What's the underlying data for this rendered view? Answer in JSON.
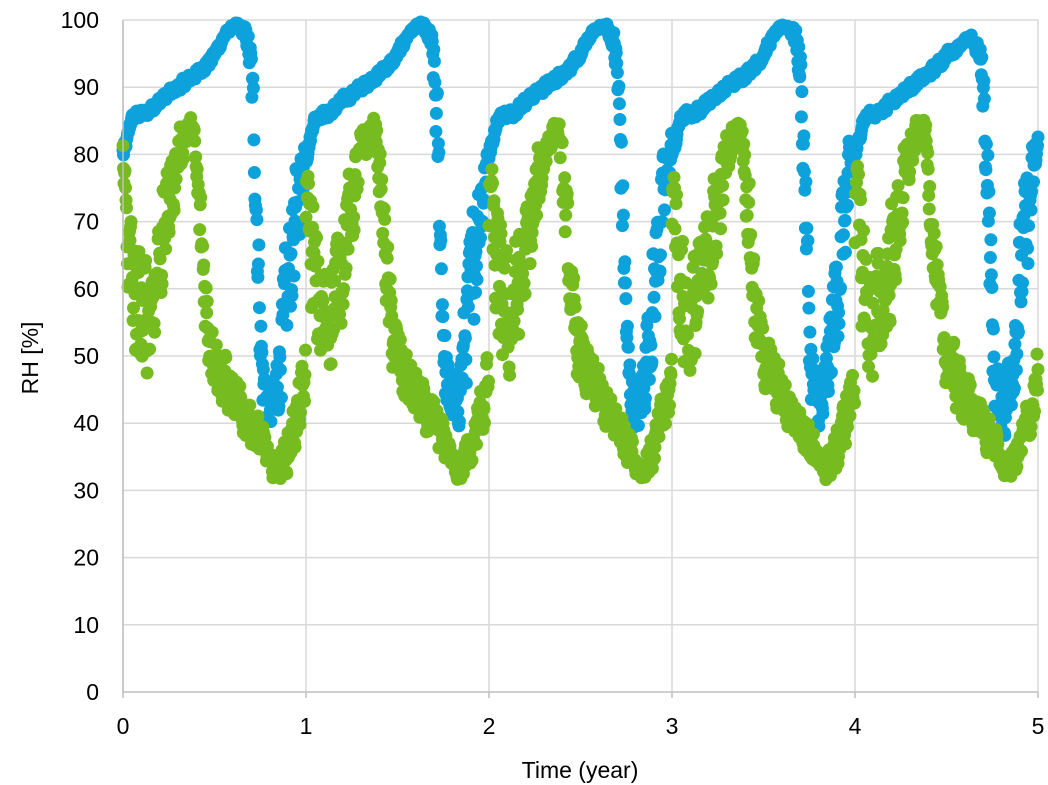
{
  "chart_data": {
    "type": "scatter",
    "xlabel": "Time (year)",
    "ylabel": "RH [%]",
    "xlim": [
      0,
      5
    ],
    "ylim": [
      0,
      100
    ],
    "xticks": [
      0,
      1,
      2,
      3,
      4,
      5
    ],
    "yticks": [
      0,
      10,
      20,
      30,
      40,
      50,
      60,
      70,
      80,
      90,
      100
    ],
    "grid": "on",
    "legend": "none",
    "series": [
      {
        "color": "#0ea2dc",
        "style": "thick markers with daily noise",
        "x": [
          0.0,
          0.02,
          0.04,
          0.08,
          0.12,
          0.16,
          0.2,
          0.25,
          0.3,
          0.35,
          0.4,
          0.44,
          0.48,
          0.52,
          0.56,
          0.6,
          0.64,
          0.68,
          0.7,
          0.72,
          0.74,
          0.76,
          0.78,
          0.8,
          0.82,
          0.84,
          0.86,
          0.88,
          0.9,
          0.92,
          0.95,
          0.98,
          1.0
        ],
        "y": [
          80,
          82,
          85,
          86,
          86,
          87,
          88,
          89,
          90,
          91,
          92,
          93,
          94,
          96,
          98,
          99,
          99,
          97,
          92,
          80,
          62,
          47,
          44,
          43,
          42,
          46,
          50,
          55,
          60,
          66,
          72,
          78,
          82
        ],
        "year5_peak": 97,
        "period_years": 1,
        "noise_amplitude": [
          2,
          1,
          1,
          1,
          1,
          1,
          1,
          1,
          1,
          1,
          1,
          1,
          1,
          1,
          0.5,
          0.5,
          1,
          2,
          6,
          10,
          10,
          8,
          6,
          5,
          6,
          7,
          9,
          11,
          12,
          12,
          10,
          6,
          3
        ]
      },
      {
        "color": "#76bc21",
        "style": "thick markers with daily noise",
        "x": [
          0.0,
          0.01,
          0.03,
          0.06,
          0.1,
          0.14,
          0.18,
          0.22,
          0.26,
          0.3,
          0.34,
          0.38,
          0.42,
          0.46,
          0.5,
          0.54,
          0.58,
          0.62,
          0.66,
          0.7,
          0.74,
          0.78,
          0.8,
          0.83,
          0.86,
          0.9,
          0.94,
          0.98,
          1.0
        ],
        "y": [
          80,
          75,
          65,
          58,
          55,
          58,
          62,
          68,
          74,
          80,
          83,
          84,
          70,
          55,
          50,
          47,
          45,
          43,
          41,
          40,
          38,
          36,
          34,
          33,
          34,
          36,
          40,
          44,
          48
        ],
        "period_years": 1,
        "noise_amplitude": [
          2,
          5,
          12,
          14,
          13,
          12,
          11,
          10,
          8,
          5,
          3,
          2,
          8,
          8,
          6,
          6,
          5,
          5,
          4,
          4,
          4,
          3,
          2,
          2,
          3,
          4,
          5,
          6,
          6
        ]
      }
    ]
  }
}
